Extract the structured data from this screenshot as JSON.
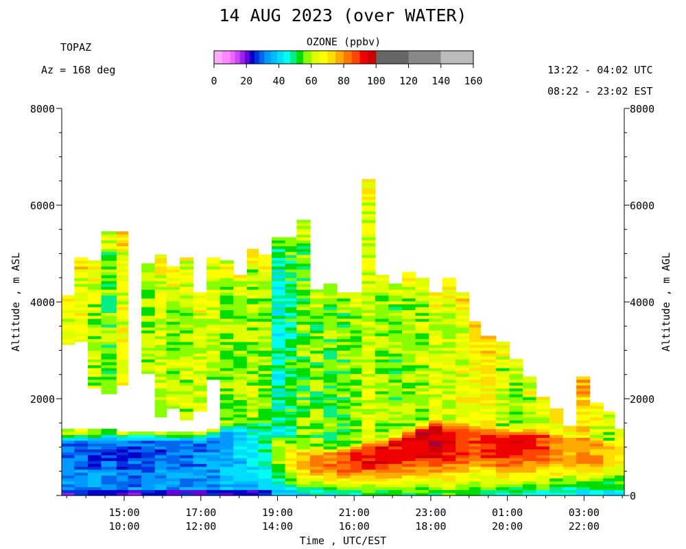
{
  "chart_data": {
    "type": "heatmap",
    "title": "14 AUG 2023 (over WATER)",
    "instrument": "TOPAZ",
    "azimuth": "Az = 168 deg",
    "time_range_utc": "13:22 - 04:02 UTC",
    "time_range_est": "08:22 - 23:02 EST",
    "colorbar": {
      "title": "OZONE (ppbv)",
      "ticks": [
        "0",
        "20",
        "40",
        "60",
        "80",
        "100",
        "120",
        "140",
        "160"
      ],
      "range": [
        0,
        160
      ],
      "colors": [
        "#ffaaff",
        "#ff88ff",
        "#ee66ff",
        "#cc44ff",
        "#9922ee",
        "#6600dd",
        "#0000cc",
        "#0033dd",
        "#0066ee",
        "#0099ff",
        "#00bbff",
        "#00ddff",
        "#00ffee",
        "#00ee88",
        "#00dd00",
        "#88ff00",
        "#ddff00",
        "#ffff00",
        "#ffdd00",
        "#ffaa00",
        "#ff7700",
        "#ff4400",
        "#ee0000",
        "#cc0000",
        "#aa0033",
        "#666666",
        "#888888",
        "#bbbbbb"
      ]
    },
    "xlabel": "Time , UTC/EST",
    "ylabel_left": "Altitude , m ASL",
    "ylabel_right": "Altitude , m AGL",
    "xlim_hours_utc": [
      13.37,
      28.05
    ],
    "ylim": [
      0,
      8000
    ],
    "x_ticks": [
      {
        "hour": 15,
        "utc": "15:00",
        "est": "10:00"
      },
      {
        "hour": 17,
        "utc": "17:00",
        "est": "12:00"
      },
      {
        "hour": 19,
        "utc": "19:00",
        "est": "14:00"
      },
      {
        "hour": 21,
        "utc": "21:00",
        "est": "16:00"
      },
      {
        "hour": 23,
        "utc": "23:00",
        "est": "18:00"
      },
      {
        "hour": 25,
        "utc": "01:00",
        "est": "20:00"
      },
      {
        "hour": 27,
        "utc": "03:00",
        "est": "22:00"
      }
    ],
    "y_ticks_left": [
      "2000",
      "4000",
      "6000",
      "8000"
    ],
    "y_ticks_right": [
      "0",
      "2000",
      "4000",
      "6000",
      "8000"
    ],
    "columns": [
      {
        "t0": 13.37,
        "t1": 13.7,
        "top": 4100,
        "gap": [
          3100,
          1350
        ],
        "pbl": 1300,
        "pbl_o": 30,
        "ft_o": 62,
        "res": 35
      },
      {
        "t0": 13.7,
        "t1": 14.05,
        "top": 4900,
        "gap": [
          3200,
          1350
        ],
        "pbl": 1300,
        "pbl_o": 30,
        "ft_o": 64,
        "res": 35
      },
      {
        "t0": 14.05,
        "t1": 14.4,
        "top": 4850,
        "gap": [
          2200,
          1350
        ],
        "pbl": 1300,
        "pbl_o": 29,
        "ft_o": 60,
        "res": 35
      },
      {
        "t0": 14.4,
        "t1": 14.8,
        "top": 5450,
        "gap": [
          2100,
          1350
        ],
        "pbl": 1300,
        "pbl_o": 28,
        "ft_o": 56,
        "res": 34
      },
      {
        "t0": 14.8,
        "t1": 15.1,
        "top": 5450,
        "gap": [
          2300,
          1300
        ],
        "pbl": 1300,
        "pbl_o": 28,
        "ft_o": 64,
        "res": 34
      },
      {
        "t0": 15.1,
        "t1": 15.45,
        "top": 0,
        "gap": null,
        "pbl": 1300,
        "pbl_o": 28,
        "ft_o": 60,
        "res": 34
      },
      {
        "t0": 15.45,
        "t1": 15.8,
        "top": 4750,
        "gap": [
          2500,
          1300
        ],
        "pbl": 1300,
        "pbl_o": 29,
        "ft_o": 58,
        "res": 34
      },
      {
        "t0": 15.8,
        "t1": 16.1,
        "top": 4950,
        "gap": [
          1600,
          1300
        ],
        "pbl": 1300,
        "pbl_o": 29,
        "ft_o": 62,
        "res": 35
      },
      {
        "t0": 16.1,
        "t1": 16.45,
        "top": 4700,
        "gap": [
          1800,
          1300
        ],
        "pbl": 1300,
        "pbl_o": 30,
        "ft_o": 60,
        "res": 35
      },
      {
        "t0": 16.45,
        "t1": 16.8,
        "top": 4900,
        "gap": [
          1550,
          1300
        ],
        "pbl": 1300,
        "pbl_o": 30,
        "ft_o": 60,
        "res": 35
      },
      {
        "t0": 16.8,
        "t1": 17.15,
        "top": 4200,
        "gap": [
          1750,
          1300
        ],
        "pbl": 1300,
        "pbl_o": 32,
        "ft_o": 62,
        "res": 35
      },
      {
        "t0": 17.15,
        "t1": 17.5,
        "top": 4900,
        "gap": [
          2400,
          1350
        ],
        "pbl": 1350,
        "pbl_o": 33,
        "ft_o": 60,
        "res": 36
      },
      {
        "t0": 17.5,
        "t1": 17.85,
        "top": 4850,
        "gap": null,
        "pbl": 1500,
        "pbl_o": 36,
        "ft_o": 58,
        "res": 36
      },
      {
        "t0": 17.85,
        "t1": 18.2,
        "top": 4550,
        "gap": null,
        "pbl": 1550,
        "pbl_o": 40,
        "ft_o": 58,
        "res": 37
      },
      {
        "t0": 18.2,
        "t1": 18.5,
        "top": 5050,
        "gap": null,
        "pbl": 1600,
        "pbl_o": 45,
        "ft_o": 60,
        "res": 37
      },
      {
        "t0": 18.5,
        "t1": 18.85,
        "top": 4950,
        "gap": null,
        "pbl": 1650,
        "pbl_o": 48,
        "ft_o": 58,
        "res": 37
      },
      {
        "t0": 18.85,
        "t1": 19.2,
        "top": 5300,
        "gap": null,
        "pbl": 1300,
        "pbl_o": 60,
        "ft_o": 46,
        "res": 37
      },
      {
        "t0": 19.2,
        "t1": 19.5,
        "top": 5300,
        "gap": null,
        "pbl": 1100,
        "pbl_o": 70,
        "ft_o": 50,
        "res": 38
      },
      {
        "t0": 19.5,
        "t1": 19.85,
        "top": 5700,
        "gap": null,
        "pbl": 1000,
        "pbl_o": 76,
        "ft_o": 56,
        "res": 40
      },
      {
        "t0": 19.85,
        "t1": 20.2,
        "top": 4250,
        "gap": null,
        "pbl": 1000,
        "pbl_o": 80,
        "ft_o": 56,
        "res": 42
      },
      {
        "t0": 20.2,
        "t1": 20.55,
        "top": 4350,
        "gap": null,
        "pbl": 1000,
        "pbl_o": 84,
        "ft_o": 55,
        "res": 44
      },
      {
        "t0": 20.55,
        "t1": 20.9,
        "top": 4150,
        "gap": null,
        "pbl": 1050,
        "pbl_o": 86,
        "ft_o": 55,
        "res": 45
      },
      {
        "t0": 20.9,
        "t1": 21.2,
        "top": 4150,
        "gap": null,
        "pbl": 1100,
        "pbl_o": 90,
        "ft_o": 56,
        "res": 46
      },
      {
        "t0": 21.2,
        "t1": 21.55,
        "top": 6500,
        "gap": null,
        "pbl": 1150,
        "pbl_o": 92,
        "ft_o": 62,
        "res": 47
      },
      {
        "t0": 21.55,
        "t1": 21.9,
        "top": 4550,
        "gap": null,
        "pbl": 1200,
        "pbl_o": 94,
        "ft_o": 58,
        "res": 48
      },
      {
        "t0": 21.9,
        "t1": 22.25,
        "top": 4350,
        "gap": null,
        "pbl": 1300,
        "pbl_o": 92,
        "ft_o": 56,
        "res": 48
      },
      {
        "t0": 22.25,
        "t1": 22.6,
        "top": 4600,
        "gap": null,
        "pbl": 1450,
        "pbl_o": 94,
        "ft_o": 58,
        "res": 49
      },
      {
        "t0": 22.6,
        "t1": 22.95,
        "top": 4500,
        "gap": null,
        "pbl": 1550,
        "pbl_o": 96,
        "ft_o": 60,
        "res": 50
      },
      {
        "t0": 22.95,
        "t1": 23.3,
        "top": 4150,
        "gap": null,
        "pbl": 1650,
        "pbl_o": 98,
        "ft_o": 62,
        "res": 50
      },
      {
        "t0": 23.3,
        "t1": 23.65,
        "top": 4450,
        "gap": null,
        "pbl": 1600,
        "pbl_o": 94,
        "ft_o": 62,
        "res": 50
      },
      {
        "t0": 23.65,
        "t1": 24.0,
        "top": 4150,
        "gap": null,
        "pbl": 1550,
        "pbl_o": 90,
        "ft_o": 64,
        "res": 50
      },
      {
        "t0": 24.0,
        "t1": 24.3,
        "top": 3600,
        "gap": null,
        "pbl": 1500,
        "pbl_o": 86,
        "ft_o": 66,
        "res": 48
      },
      {
        "t0": 24.3,
        "t1": 24.7,
        "top": 3300,
        "gap": null,
        "pbl": 1500,
        "pbl_o": 88,
        "ft_o": 68,
        "res": 46
      },
      {
        "t0": 24.7,
        "t1": 25.05,
        "top": 3150,
        "gap": null,
        "pbl": 1450,
        "pbl_o": 90,
        "ft_o": 60,
        "res": 45
      },
      {
        "t0": 25.05,
        "t1": 25.4,
        "top": 2800,
        "gap": null,
        "pbl": 1450,
        "pbl_o": 92,
        "ft_o": 58,
        "res": 45
      },
      {
        "t0": 25.4,
        "t1": 25.75,
        "top": 2450,
        "gap": null,
        "pbl": 1450,
        "pbl_o": 90,
        "ft_o": 60,
        "res": 44
      },
      {
        "t0": 25.75,
        "t1": 26.1,
        "top": 2000,
        "gap": null,
        "pbl": 1450,
        "pbl_o": 88,
        "ft_o": 62,
        "res": 44
      },
      {
        "t0": 26.1,
        "t1": 26.45,
        "top": 1750,
        "gap": null,
        "pbl": 1350,
        "pbl_o": 82,
        "ft_o": 64,
        "res": 42
      },
      {
        "t0": 26.45,
        "t1": 26.8,
        "top": 1400,
        "gap": null,
        "pbl": 1300,
        "pbl_o": 78,
        "ft_o": 66,
        "res": 40
      },
      {
        "t0": 26.8,
        "t1": 27.15,
        "top": 2450,
        "gap": null,
        "pbl": 1300,
        "pbl_o": 80,
        "ft_o": 72,
        "res": 40
      },
      {
        "t0": 27.15,
        "t1": 27.5,
        "top": 1900,
        "gap": null,
        "pbl": 1250,
        "pbl_o": 78,
        "ft_o": 62,
        "res": 40
      },
      {
        "t0": 27.5,
        "t1": 27.8,
        "top": 1700,
        "gap": null,
        "pbl": 1200,
        "pbl_o": 72,
        "ft_o": 56,
        "res": 40
      },
      {
        "t0": 27.8,
        "t1": 28.05,
        "top": 1350,
        "gap": null,
        "pbl": 1200,
        "pbl_o": 70,
        "ft_o": 62,
        "res": 40
      }
    ]
  }
}
